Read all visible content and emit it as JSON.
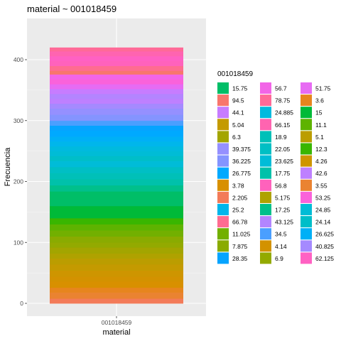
{
  "chart_data": {
    "type": "bar",
    "stacked": true,
    "title": "material ~ 001018459",
    "xlabel": "material",
    "ylabel": "Frecuencia",
    "categories": [
      "001018459"
    ],
    "ylim": [
      0,
      455
    ],
    "yticks": [
      0,
      100,
      200,
      300,
      400
    ],
    "grid": true,
    "panel_background": "#ebebeb",
    "legend": {
      "title": "001018459",
      "position": "right",
      "columns": 3
    },
    "series": [
      {
        "name": "15.75",
        "color": "#00BE67",
        "value": 24
      },
      {
        "name": "94.5",
        "color": "#F8766D",
        "value": 6
      },
      {
        "name": "44.1",
        "color": "#C77CFF",
        "value": 8
      },
      {
        "name": "5.04",
        "color": "#C49A00",
        "value": 10
      },
      {
        "name": "6.3",
        "color": "#A3A500",
        "value": 10
      },
      {
        "name": "39.375",
        "color": "#9590FF",
        "value": 10
      },
      {
        "name": "36.225",
        "color": "#8494FF",
        "value": 10
      },
      {
        "name": "26.775",
        "color": "#00A9FF",
        "value": 10
      },
      {
        "name": "3.78",
        "color": "#D89000",
        "value": 10
      },
      {
        "name": "2.205",
        "color": "#F37B59",
        "value": 8
      },
      {
        "name": "25.2",
        "color": "#00B6EB",
        "value": 8
      },
      {
        "name": "66.78",
        "color": "#FF6C91",
        "value": 8
      },
      {
        "name": "11.025",
        "color": "#72B000",
        "value": 10
      },
      {
        "name": "7.875",
        "color": "#8AAB00",
        "value": 10
      },
      {
        "name": "28.35",
        "color": "#06A4FF",
        "value": 8
      },
      {
        "name": "56.7",
        "color": "#F265E7",
        "value": 8
      },
      {
        "name": "78.75",
        "color": "#FF6A98",
        "value": 6
      },
      {
        "name": "24.885",
        "color": "#00BADE",
        "value": 8
      },
      {
        "name": "66.15",
        "color": "#FF64B0",
        "value": 8
      },
      {
        "name": "18.9",
        "color": "#00C0B8",
        "value": 10
      },
      {
        "name": "22.05",
        "color": "#00BFC4",
        "value": 10
      },
      {
        "name": "23.625",
        "color": "#00BCD8",
        "value": 10
      },
      {
        "name": "17.75",
        "color": "#00C1AA",
        "value": 10
      },
      {
        "name": "56.8",
        "color": "#FF62BC",
        "value": 8
      },
      {
        "name": "5.175",
        "color": "#AFA200",
        "value": 8
      },
      {
        "name": "17.25",
        "color": "#00C08B",
        "value": 10
      },
      {
        "name": "43.125",
        "color": "#B385FF",
        "value": 8
      },
      {
        "name": "34.5",
        "color": "#4A9FFF",
        "value": 8
      },
      {
        "name": "4.14",
        "color": "#D39200",
        "value": 8
      },
      {
        "name": "6.9",
        "color": "#93AA00",
        "value": 8
      },
      {
        "name": "51.75",
        "color": "#E76BF3",
        "value": 8
      },
      {
        "name": "3.6",
        "color": "#E7851E",
        "value": 8
      },
      {
        "name": "15",
        "color": "#00BA38",
        "value": 20
      },
      {
        "name": "11.1",
        "color": "#5EB300",
        "value": 10
      },
      {
        "name": "5.1",
        "color": "#BB9D00",
        "value": 10
      },
      {
        "name": "12.3",
        "color": "#39B600",
        "value": 10
      },
      {
        "name": "4.26",
        "color": "#CE9500",
        "value": 10
      },
      {
        "name": "42.6",
        "color": "#BE80FF",
        "value": 8
      },
      {
        "name": "3.55",
        "color": "#EA8331",
        "value": 10
      },
      {
        "name": "53.25",
        "color": "#FA62DB",
        "value": 8
      },
      {
        "name": "24.85",
        "color": "#00BCD6",
        "value": 8
      },
      {
        "name": "24.14",
        "color": "#00BEC8",
        "value": 8
      },
      {
        "name": "26.625",
        "color": "#00B0F6",
        "value": 8
      },
      {
        "name": "40.825",
        "color": "#A58AFF",
        "value": 8
      },
      {
        "name": "62.125",
        "color": "#FF61C3",
        "value": 8
      }
    ],
    "stack_order": [
      "78.75",
      "66.15",
      "62.125",
      "56.8",
      "66.78",
      "94.5",
      "56.7",
      "53.25",
      "51.75",
      "44.1",
      "43.125",
      "42.6",
      "40.825",
      "39.375",
      "36.225",
      "34.5",
      "28.35",
      "26.775",
      "26.625",
      "25.2",
      "24.885",
      "24.85",
      "24.14",
      "23.625",
      "22.05",
      "18.9",
      "17.75",
      "17.25",
      "15.75",
      "15",
      "12.3",
      "11.1",
      "11.025",
      "7.875",
      "6.9",
      "6.3",
      "5.175",
      "5.1",
      "5.04",
      "4.26",
      "4.14",
      "3.78",
      "3.6",
      "3.55",
      "2.205"
    ]
  }
}
